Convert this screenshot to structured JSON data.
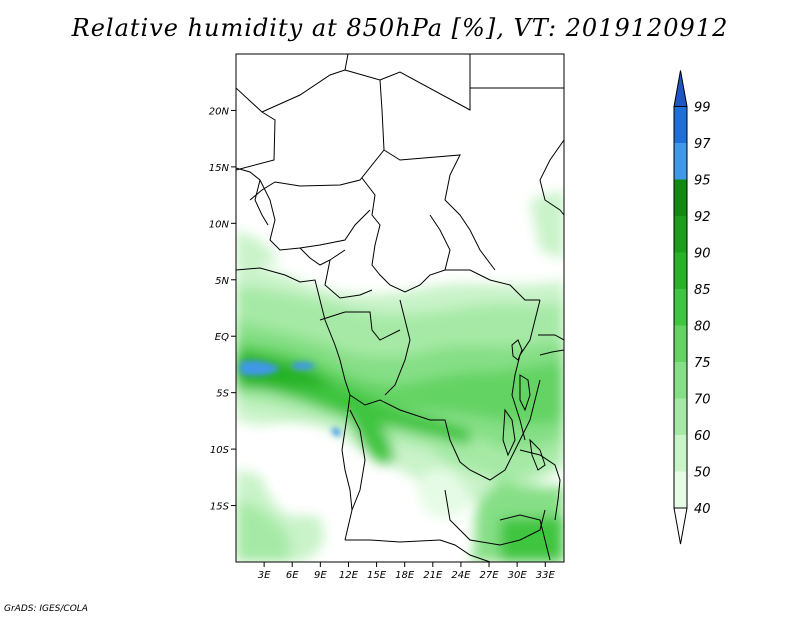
{
  "title": "Relative humidity at 850hPa [%], VT: 2019120912",
  "footer": "GrADS: IGES/COLA",
  "map": {
    "lon_range": [
      0,
      35
    ],
    "lat_range": [
      -20,
      25
    ],
    "lat_ticks": [
      "20N",
      "15N",
      "10N",
      "5N",
      "EQ",
      "5S",
      "10S",
      "15S"
    ],
    "lon_ticks": [
      "3E",
      "6E",
      "9E",
      "12E",
      "15E",
      "18E",
      "21E",
      "24E",
      "27E",
      "30E",
      "33E"
    ]
  },
  "colorbar": {
    "labels": [
      "40",
      "50",
      "60",
      "70",
      "75",
      "80",
      "85",
      "90",
      "92",
      "95",
      "97",
      "99"
    ],
    "colors": [
      "#ffffff",
      "#e6fbe6",
      "#c9f3c9",
      "#a6e9a6",
      "#86df86",
      "#64d364",
      "#3fc53f",
      "#27b227",
      "#1c9e1c",
      "#128a12",
      "#3f98e8",
      "#1f6fd8",
      "#1e55c2"
    ]
  }
}
